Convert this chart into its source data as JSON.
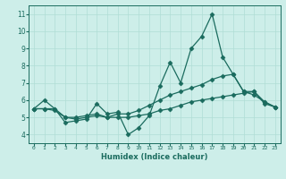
{
  "x": [
    0,
    1,
    2,
    3,
    4,
    5,
    6,
    7,
    8,
    9,
    10,
    11,
    12,
    13,
    14,
    15,
    16,
    17,
    18,
    19,
    20,
    21,
    22,
    23
  ],
  "line1": [
    5.5,
    6.0,
    5.5,
    4.7,
    4.8,
    4.9,
    5.8,
    5.2,
    5.3,
    4.0,
    4.4,
    5.1,
    6.8,
    8.2,
    7.0,
    9.0,
    9.7,
    11.0,
    8.5,
    7.5,
    6.5,
    6.5,
    5.8,
    5.6
  ],
  "line2": [
    5.5,
    5.5,
    5.5,
    5.0,
    5.0,
    5.1,
    5.2,
    5.0,
    5.2,
    5.2,
    5.4,
    5.7,
    6.0,
    6.3,
    6.5,
    6.7,
    6.9,
    7.2,
    7.4,
    7.5,
    6.5,
    6.3,
    5.9,
    5.6
  ],
  "line3": [
    5.5,
    5.5,
    5.4,
    5.0,
    4.9,
    5.0,
    5.1,
    5.0,
    5.0,
    5.0,
    5.1,
    5.2,
    5.4,
    5.5,
    5.7,
    5.9,
    6.0,
    6.1,
    6.2,
    6.3,
    6.4,
    6.5,
    5.9,
    5.6
  ],
  "line_color": "#1a6b5e",
  "bg_color": "#cdeee9",
  "grid_color": "#b0ddd5",
  "xlabel": "Humidex (Indice chaleur)",
  "xlim": [
    -0.5,
    23.5
  ],
  "ylim": [
    3.5,
    11.5
  ],
  "yticks": [
    4,
    5,
    6,
    7,
    8,
    9,
    10,
    11
  ],
  "xticks": [
    0,
    1,
    2,
    3,
    4,
    5,
    6,
    7,
    8,
    9,
    10,
    11,
    12,
    13,
    14,
    15,
    16,
    17,
    18,
    19,
    20,
    21,
    22,
    23
  ],
  "markersize": 2.5,
  "linewidth": 0.9
}
